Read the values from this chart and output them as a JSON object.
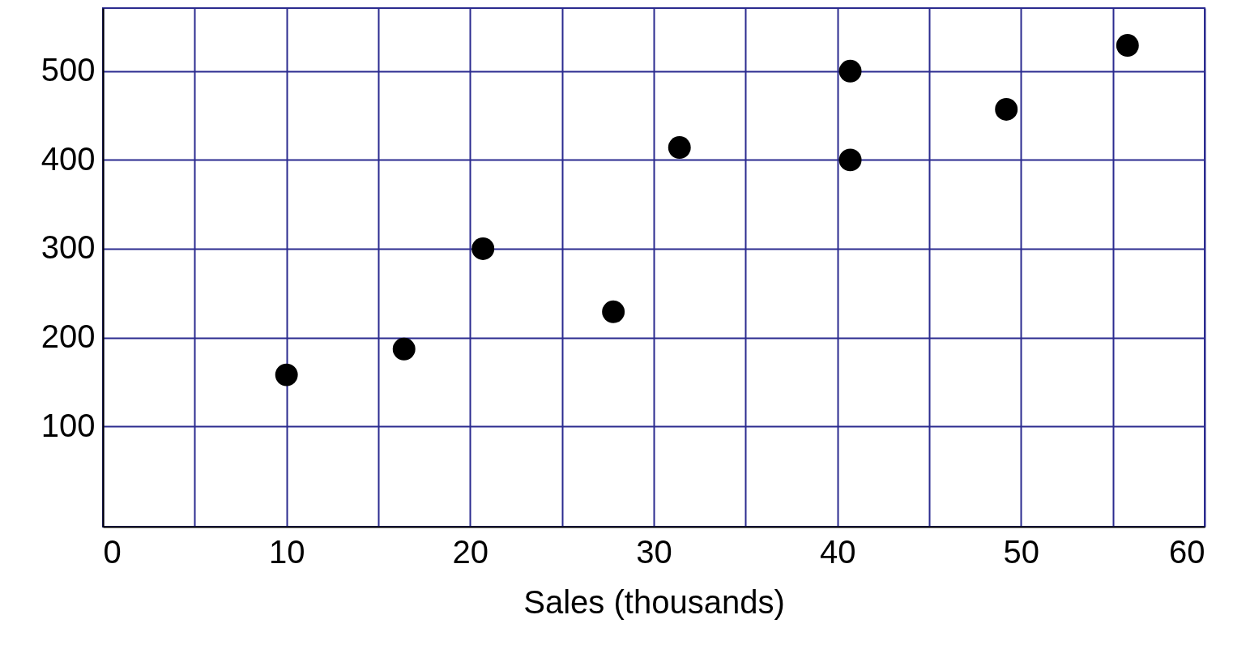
{
  "chart_data": {
    "type": "scatter",
    "xlabel": "Sales (thousands)",
    "x": [
      10,
      16.4,
      20.7,
      27.8,
      31.4,
      40.7,
      40.7,
      49.2,
      55.8
    ],
    "series": [
      {
        "color": "#000000",
        "values": [
          158,
          187,
          300,
          229,
          414,
          500,
          400,
          457,
          529
        ]
      }
    ],
    "xlim": [
      0,
      60
    ],
    "ylim": [
      -13,
      571
    ],
    "xticks": [
      0,
      {
        "value": 5,
        "label": null
      },
      10,
      {
        "value": 15,
        "label": null
      },
      20,
      {
        "value": 25,
        "label": null
      },
      30,
      {
        "value": 35,
        "label": null
      },
      40,
      {
        "value": 45,
        "label": null
      },
      50,
      {
        "value": 55,
        "label": null
      },
      60
    ],
    "yticks": [
      100,
      200,
      300,
      400,
      500
    ],
    "grid": true,
    "marker": "circle"
  }
}
